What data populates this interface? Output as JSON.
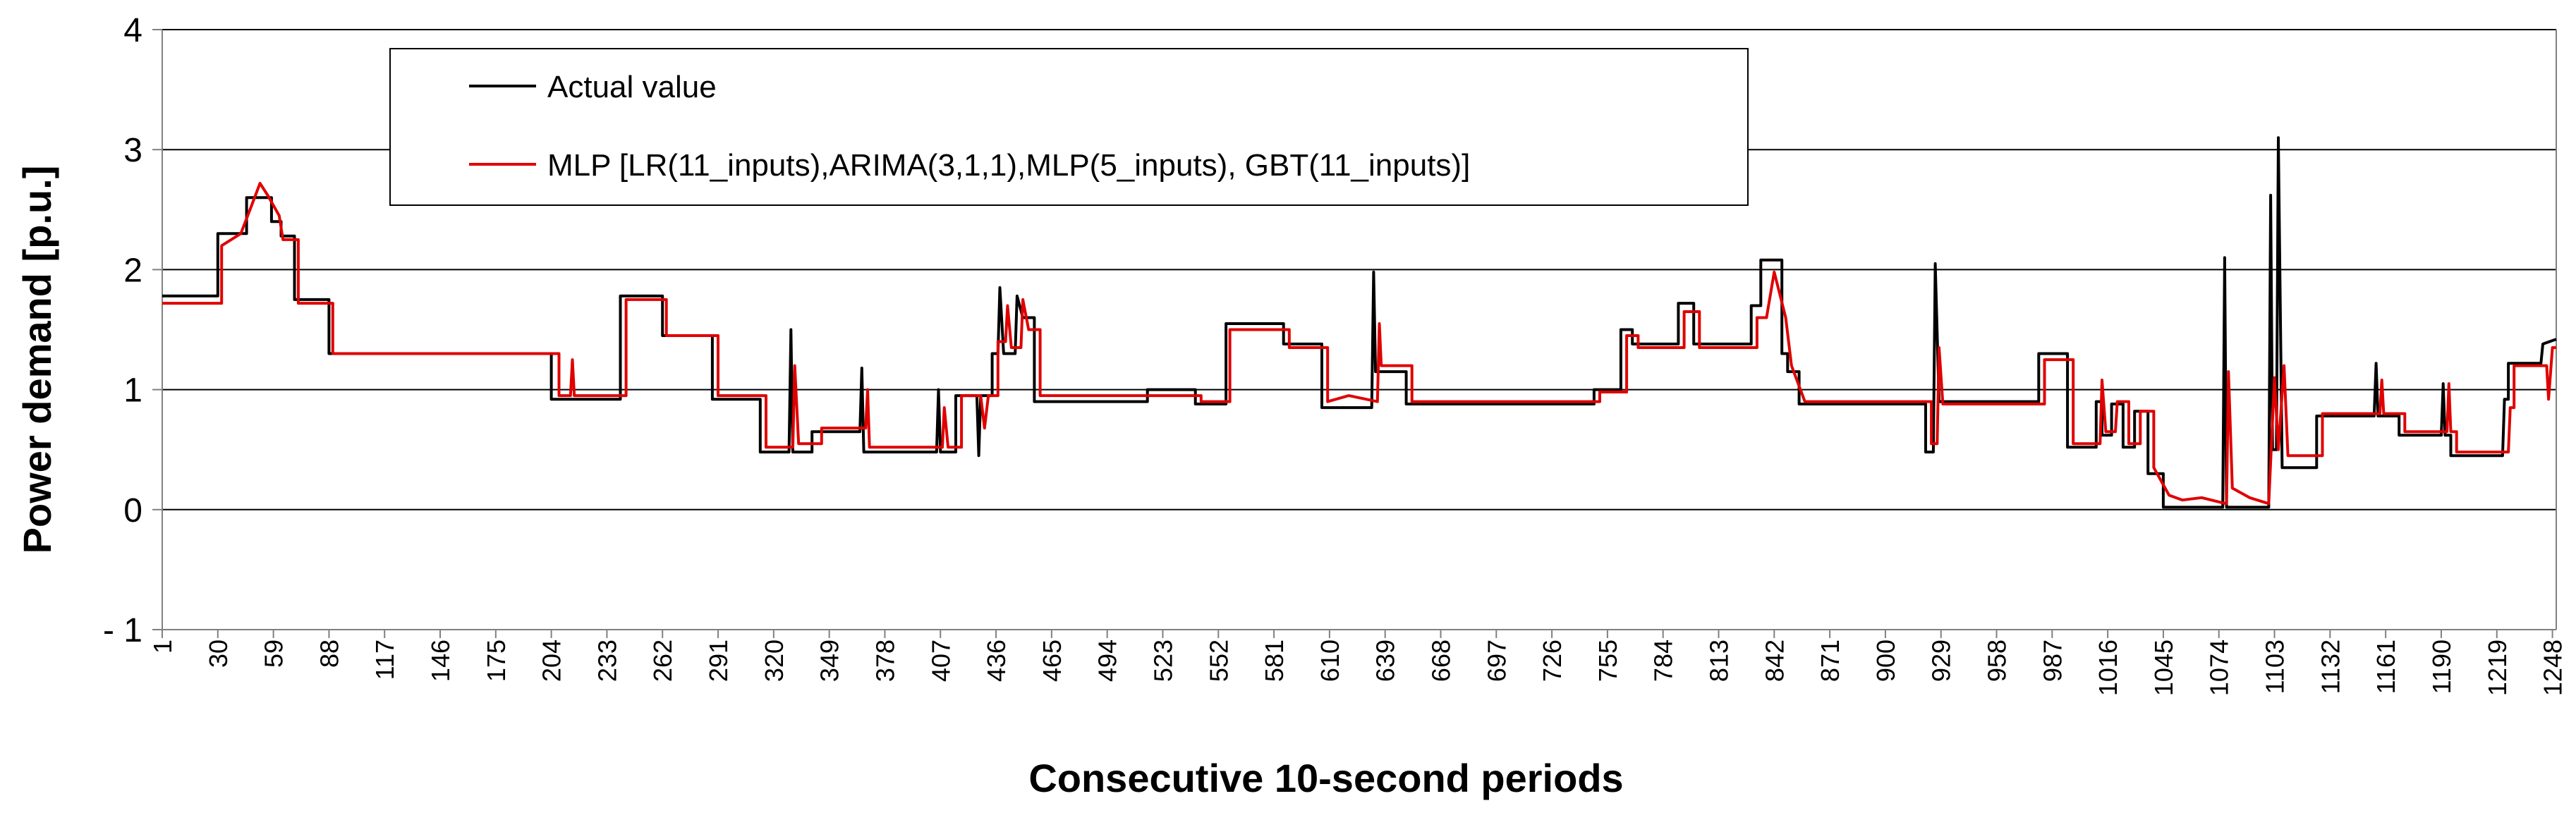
{
  "chart_data": {
    "type": "line",
    "title": "",
    "xlabel": "Consecutive 10-second periods",
    "ylabel": "Power demand [p.u.]",
    "xlim": [
      1,
      1250
    ],
    "ylim": [
      -1,
      4
    ],
    "yticks": [
      -1,
      0,
      1,
      2,
      3,
      4
    ],
    "ytick_labels": [
      "- 1",
      "0",
      "1",
      "2",
      "3",
      "4"
    ],
    "xtick_labels": [
      "1",
      "30",
      "59",
      "88",
      "117",
      "146",
      "175",
      "204",
      "233",
      "262",
      "291",
      "320",
      "349",
      "378",
      "407",
      "436",
      "465",
      "494",
      "523",
      "552",
      "581",
      "610",
      "639",
      "668",
      "697",
      "726",
      "755",
      "784",
      "813",
      "842",
      "871",
      "900",
      "929",
      "958",
      "987",
      "1016",
      "1045",
      "1074",
      "1103",
      "1132",
      "1161",
      "1190",
      "1219",
      "1248"
    ],
    "grid": "horizontal",
    "legend_position": "top-left",
    "colors": {
      "actual": "#000000",
      "mlp": "#e00000",
      "grid": "#000000",
      "axis": "#808080"
    },
    "series": [
      {
        "name": "Actual value",
        "color": "#000000",
        "points": [
          [
            1,
            1.78
          ],
          [
            30,
            1.78
          ],
          [
            30,
            2.3
          ],
          [
            45,
            2.3
          ],
          [
            45,
            2.6
          ],
          [
            58,
            2.6
          ],
          [
            58,
            2.4
          ],
          [
            63,
            2.4
          ],
          [
            63,
            2.28
          ],
          [
            70,
            2.28
          ],
          [
            70,
            1.75
          ],
          [
            88,
            1.75
          ],
          [
            88,
            1.3
          ],
          [
            204,
            1.3
          ],
          [
            204,
            0.92
          ],
          [
            240,
            0.92
          ],
          [
            240,
            1.78
          ],
          [
            262,
            1.78
          ],
          [
            262,
            1.45
          ],
          [
            288,
            1.45
          ],
          [
            288,
            0.92
          ],
          [
            313,
            0.92
          ],
          [
            313,
            0.48
          ],
          [
            328,
            0.48
          ],
          [
            329,
            1.5
          ],
          [
            330,
            0.48
          ],
          [
            340,
            0.48
          ],
          [
            340,
            0.65
          ],
          [
            365,
            0.65
          ],
          [
            366,
            1.18
          ],
          [
            367,
            0.48
          ],
          [
            405,
            0.48
          ],
          [
            406,
            1.0
          ],
          [
            407,
            0.48
          ],
          [
            415,
            0.48
          ],
          [
            415,
            0.95
          ],
          [
            426,
            0.95
          ],
          [
            427,
            0.45
          ],
          [
            428,
            0.95
          ],
          [
            434,
            0.95
          ],
          [
            434,
            1.3
          ],
          [
            437,
            1.3
          ],
          [
            438,
            1.85
          ],
          [
            440,
            1.3
          ],
          [
            446,
            1.3
          ],
          [
            447,
            1.78
          ],
          [
            450,
            1.6
          ],
          [
            456,
            1.6
          ],
          [
            456,
            0.9
          ],
          [
            515,
            0.9
          ],
          [
            515,
            1.0
          ],
          [
            540,
            1.0
          ],
          [
            540,
            0.88
          ],
          [
            556,
            0.88
          ],
          [
            556,
            1.55
          ],
          [
            586,
            1.55
          ],
          [
            586,
            1.38
          ],
          [
            606,
            1.38
          ],
          [
            606,
            0.85
          ],
          [
            632,
            0.85
          ],
          [
            633,
            1.98
          ],
          [
            634,
            1.15
          ],
          [
            650,
            1.15
          ],
          [
            650,
            0.88
          ],
          [
            748,
            0.88
          ],
          [
            748,
            1.0
          ],
          [
            762,
            1.0
          ],
          [
            762,
            1.5
          ],
          [
            768,
            1.5
          ],
          [
            768,
            1.38
          ],
          [
            792,
            1.38
          ],
          [
            792,
            1.72
          ],
          [
            800,
            1.72
          ],
          [
            800,
            1.38
          ],
          [
            830,
            1.38
          ],
          [
            830,
            1.7
          ],
          [
            835,
            1.7
          ],
          [
            835,
            2.08
          ],
          [
            846,
            2.08
          ],
          [
            846,
            1.3
          ],
          [
            849,
            1.3
          ],
          [
            849,
            1.15
          ],
          [
            855,
            1.15
          ],
          [
            855,
            0.88
          ],
          [
            921,
            0.88
          ],
          [
            921,
            0.48
          ],
          [
            925,
            0.48
          ],
          [
            926,
            2.05
          ],
          [
            928,
            0.9
          ],
          [
            980,
            0.9
          ],
          [
            980,
            1.3
          ],
          [
            995,
            1.3
          ],
          [
            995,
            0.52
          ],
          [
            1010,
            0.52
          ],
          [
            1010,
            0.9
          ],
          [
            1013,
            0.9
          ],
          [
            1013,
            0.62
          ],
          [
            1018,
            0.62
          ],
          [
            1018,
            0.88
          ],
          [
            1024,
            0.88
          ],
          [
            1024,
            0.52
          ],
          [
            1030,
            0.52
          ],
          [
            1030,
            0.82
          ],
          [
            1037,
            0.82
          ],
          [
            1037,
            0.3
          ],
          [
            1045,
            0.3
          ],
          [
            1045,
            0.02
          ],
          [
            1076,
            0.02
          ],
          [
            1077,
            2.1
          ],
          [
            1078,
            0.02
          ],
          [
            1100,
            0.02
          ],
          [
            1101,
            2.62
          ],
          [
            1102,
            0.5
          ],
          [
            1104,
            0.5
          ],
          [
            1105,
            3.1
          ],
          [
            1107,
            0.35
          ],
          [
            1125,
            0.35
          ],
          [
            1125,
            0.78
          ],
          [
            1155,
            0.78
          ],
          [
            1156,
            1.22
          ],
          [
            1157,
            0.78
          ],
          [
            1168,
            0.78
          ],
          [
            1168,
            0.62
          ],
          [
            1190,
            0.62
          ],
          [
            1191,
            1.05
          ],
          [
            1192,
            0.62
          ],
          [
            1195,
            0.62
          ],
          [
            1195,
            0.45
          ],
          [
            1222,
            0.45
          ],
          [
            1223,
            0.92
          ],
          [
            1225,
            0.92
          ],
          [
            1225,
            1.22
          ],
          [
            1242,
            1.22
          ],
          [
            1243,
            1.38
          ],
          [
            1250,
            1.42
          ]
        ]
      },
      {
        "name": "MLP [LR(11_inputs),ARIMA(3,1,1),MLP(5_inputs), GBT(11_inputs)]",
        "color": "#e00000",
        "points": [
          [
            1,
            1.72
          ],
          [
            32,
            1.72
          ],
          [
            32,
            2.2
          ],
          [
            42,
            2.3
          ],
          [
            48,
            2.55
          ],
          [
            52,
            2.72
          ],
          [
            56,
            2.62
          ],
          [
            62,
            2.45
          ],
          [
            64,
            2.25
          ],
          [
            72,
            2.25
          ],
          [
            72,
            1.72
          ],
          [
            90,
            1.72
          ],
          [
            90,
            1.3
          ],
          [
            208,
            1.3
          ],
          [
            208,
            0.95
          ],
          [
            214,
            0.95
          ],
          [
            215,
            1.25
          ],
          [
            216,
            0.95
          ],
          [
            243,
            0.95
          ],
          [
            243,
            1.75
          ],
          [
            264,
            1.75
          ],
          [
            264,
            1.45
          ],
          [
            291,
            1.45
          ],
          [
            291,
            0.95
          ],
          [
            316,
            0.95
          ],
          [
            316,
            0.52
          ],
          [
            330,
            0.52
          ],
          [
            331,
            1.2
          ],
          [
            333,
            0.55
          ],
          [
            345,
            0.55
          ],
          [
            345,
            0.68
          ],
          [
            368,
            0.68
          ],
          [
            369,
            1.0
          ],
          [
            370,
            0.52
          ],
          [
            408,
            0.52
          ],
          [
            409,
            0.85
          ],
          [
            411,
            0.52
          ],
          [
            418,
            0.52
          ],
          [
            418,
            0.95
          ],
          [
            428,
            0.95
          ],
          [
            430,
            0.68
          ],
          [
            432,
            0.95
          ],
          [
            437,
            0.95
          ],
          [
            437,
            1.4
          ],
          [
            441,
            1.4
          ],
          [
            442,
            1.7
          ],
          [
            444,
            1.35
          ],
          [
            449,
            1.35
          ],
          [
            450,
            1.75
          ],
          [
            453,
            1.5
          ],
          [
            459,
            1.5
          ],
          [
            459,
            0.95
          ],
          [
            518,
            0.95
          ],
          [
            518,
            0.95
          ],
          [
            543,
            0.95
          ],
          [
            543,
            0.9
          ],
          [
            558,
            0.9
          ],
          [
            558,
            1.5
          ],
          [
            589,
            1.5
          ],
          [
            589,
            1.35
          ],
          [
            609,
            1.35
          ],
          [
            609,
            0.9
          ],
          [
            620,
            0.95
          ],
          [
            635,
            0.9
          ],
          [
            636,
            1.55
          ],
          [
            637,
            1.2
          ],
          [
            653,
            1.2
          ],
          [
            653,
            0.9
          ],
          [
            751,
            0.9
          ],
          [
            751,
            0.98
          ],
          [
            765,
            0.98
          ],
          [
            765,
            1.45
          ],
          [
            771,
            1.45
          ],
          [
            771,
            1.35
          ],
          [
            795,
            1.35
          ],
          [
            795,
            1.65
          ],
          [
            803,
            1.65
          ],
          [
            803,
            1.35
          ],
          [
            833,
            1.35
          ],
          [
            833,
            1.6
          ],
          [
            838,
            1.6
          ],
          [
            842,
            1.98
          ],
          [
            848,
            1.6
          ],
          [
            851,
            1.2
          ],
          [
            858,
            0.9
          ],
          [
            924,
            0.9
          ],
          [
            924,
            0.55
          ],
          [
            927,
            0.55
          ],
          [
            928,
            1.35
          ],
          [
            930,
            0.88
          ],
          [
            983,
            0.88
          ],
          [
            983,
            1.25
          ],
          [
            998,
            1.25
          ],
          [
            998,
            0.55
          ],
          [
            1012,
            0.55
          ],
          [
            1013,
            1.08
          ],
          [
            1015,
            0.65
          ],
          [
            1020,
            0.65
          ],
          [
            1021,
            0.9
          ],
          [
            1027,
            0.9
          ],
          [
            1027,
            0.55
          ],
          [
            1033,
            0.55
          ],
          [
            1033,
            0.82
          ],
          [
            1040,
            0.82
          ],
          [
            1040,
            0.35
          ],
          [
            1048,
            0.12
          ],
          [
            1055,
            0.08
          ],
          [
            1065,
            0.1
          ],
          [
            1075,
            0.06
          ],
          [
            1078,
            0.05
          ],
          [
            1079,
            1.15
          ],
          [
            1081,
            0.18
          ],
          [
            1090,
            0.1
          ],
          [
            1100,
            0.05
          ],
          [
            1103,
            1.1
          ],
          [
            1105,
            0.5
          ],
          [
            1108,
            1.2
          ],
          [
            1110,
            0.45
          ],
          [
            1128,
            0.45
          ],
          [
            1128,
            0.8
          ],
          [
            1158,
            0.8
          ],
          [
            1159,
            1.08
          ],
          [
            1160,
            0.8
          ],
          [
            1171,
            0.8
          ],
          [
            1171,
            0.65
          ],
          [
            1193,
            0.65
          ],
          [
            1194,
            1.05
          ],
          [
            1195,
            0.65
          ],
          [
            1198,
            0.65
          ],
          [
            1198,
            0.48
          ],
          [
            1225,
            0.48
          ],
          [
            1226,
            0.85
          ],
          [
            1228,
            0.85
          ],
          [
            1228,
            1.2
          ],
          [
            1245,
            1.2
          ],
          [
            1246,
            0.92
          ],
          [
            1248,
            1.35
          ],
          [
            1250,
            1.35
          ]
        ]
      }
    ]
  }
}
